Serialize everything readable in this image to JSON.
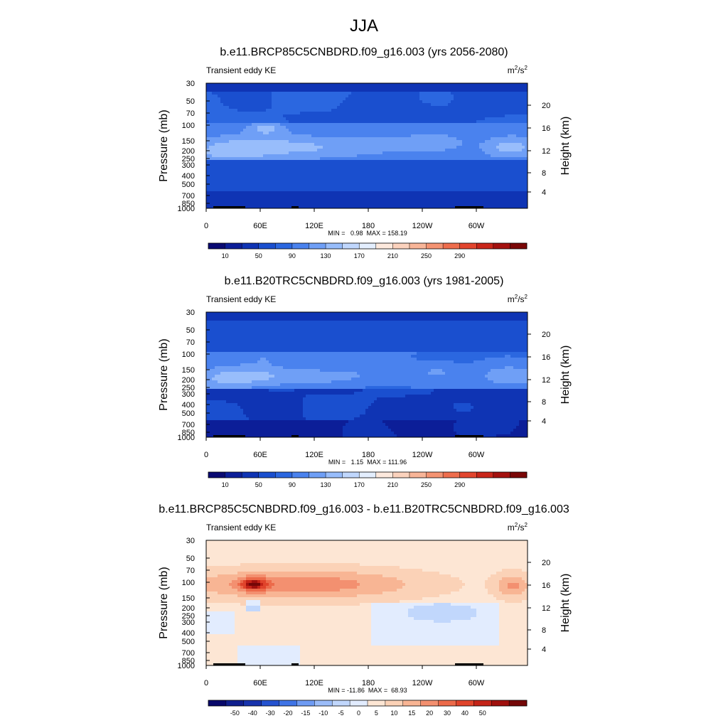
{
  "figure": {
    "title": "JJA"
  },
  "colors": {
    "abs_palette": [
      "#0a0a72",
      "#0c1e98",
      "#0f34b4",
      "#1a4fcf",
      "#2b67e0",
      "#4a82ee",
      "#6f9ff6",
      "#98bdfb",
      "#c0d7fd",
      "#e3eefe",
      "#fde9dd",
      "#fbd2bd",
      "#f8b598",
      "#f49372",
      "#ee6d4d",
      "#e2452e",
      "#c9261a",
      "#a4110f",
      "#7a0707"
    ],
    "diff_palette": [
      "#08086a",
      "#101f8e",
      "#1733ad",
      "#2553d0",
      "#3f74e6",
      "#6e9bf3",
      "#9bbcf8",
      "#c1d7fc",
      "#e2ecfe",
      "#fde6d4",
      "#fbd2b7",
      "#f8b594",
      "#f39070",
      "#ec6a4a",
      "#e0442b",
      "#c42418",
      "#a0100d",
      "#740707"
    ],
    "terrain": "#000000"
  },
  "chart_data": [
    {
      "type": "heatmap",
      "title": "b.e11.BRCP85C5CNBDRD.f09_g16.003 (yrs 2056-2080)",
      "left_label": "Transient eddy KE",
      "units": {
        "base": "m",
        "sup1": "2",
        "mid": "/s",
        "sup2": "2"
      },
      "ylabel": "Pressure (mb)",
      "ylabel_right": "Height (km)",
      "xticks": [
        "0",
        "60E",
        "120E",
        "180",
        "120W",
        "60W"
      ],
      "yticks": [
        "30",
        "50",
        "70",
        "100",
        "150",
        "200",
        "250",
        "300",
        "400",
        "500",
        "700",
        "850",
        "1000"
      ],
      "height_ticks": [
        "20",
        "16",
        "12",
        "8",
        "4"
      ],
      "stats": "MIN =   0.98  MAX = 158.19",
      "min": 0.98,
      "max": 158.19,
      "colorbar_labels": [
        "10",
        "50",
        "90",
        "130",
        "170",
        "210",
        "250",
        "290"
      ],
      "colorbar_levels": [
        10,
        30,
        50,
        70,
        90,
        110,
        130,
        150,
        170,
        190,
        210,
        230,
        250,
        270,
        290
      ]
    },
    {
      "type": "heatmap",
      "title": "b.e11.B20TRC5CNBDRD.f09_g16.003 (yrs 1981-2005)",
      "left_label": "Transient eddy KE",
      "units": {
        "base": "m",
        "sup1": "2",
        "mid": "/s",
        "sup2": "2"
      },
      "ylabel": "Pressure (mb)",
      "ylabel_right": "Height (km)",
      "xticks": [
        "0",
        "60E",
        "120E",
        "180",
        "120W",
        "60W"
      ],
      "yticks": [
        "30",
        "50",
        "70",
        "100",
        "150",
        "200",
        "250",
        "300",
        "400",
        "500",
        "700",
        "850",
        "1000"
      ],
      "height_ticks": [
        "20",
        "16",
        "12",
        "8",
        "4"
      ],
      "stats": "MIN =   1.15  MAX = 111.96",
      "min": 1.15,
      "max": 111.96,
      "colorbar_labels": [
        "10",
        "50",
        "90",
        "130",
        "170",
        "210",
        "250",
        "290"
      ],
      "colorbar_levels": [
        10,
        30,
        50,
        70,
        90,
        110,
        130,
        150,
        170,
        190,
        210,
        230,
        250,
        270,
        290
      ]
    },
    {
      "type": "heatmap",
      "title": "b.e11.BRCP85C5CNBDRD.f09_g16.003 - b.e11.B20TRC5CNBDRD.f09_g16.003",
      "left_label": "Transient eddy KE",
      "units": {
        "base": "m",
        "sup1": "2",
        "mid": "/s",
        "sup2": "2"
      },
      "ylabel": "Pressure (mb)",
      "ylabel_right": "Height (km)",
      "xticks": [
        "0",
        "60E",
        "120E",
        "180",
        "120W",
        "60W"
      ],
      "yticks": [
        "30",
        "50",
        "70",
        "100",
        "150",
        "200",
        "250",
        "300",
        "400",
        "500",
        "700",
        "850",
        "1000"
      ],
      "height_ticks": [
        "20",
        "16",
        "12",
        "8",
        "4"
      ],
      "stats": "MIN = -11.86  MAX =  68.93",
      "min": -11.86,
      "max": 68.93,
      "colorbar_labels": [
        "-50",
        "-40",
        "-30",
        "-20",
        "-15",
        "-10",
        "-5",
        "0",
        "5",
        "10",
        "15",
        "20",
        "30",
        "40",
        "50"
      ],
      "colorbar_levels": [
        -50,
        -40,
        -30,
        -20,
        -15,
        -10,
        -5,
        0,
        5,
        10,
        15,
        20,
        30,
        40,
        50
      ]
    }
  ]
}
